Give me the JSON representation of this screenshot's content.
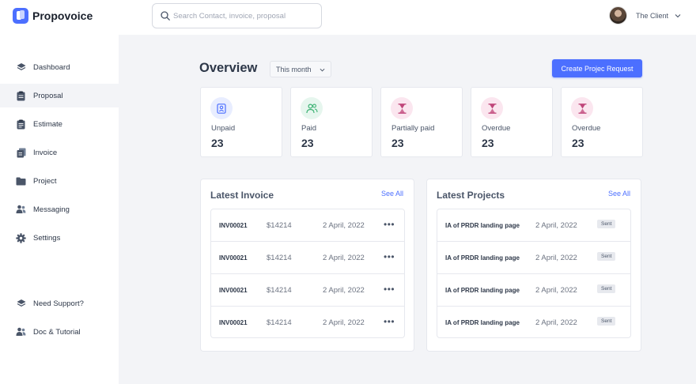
{
  "app": {
    "name": "Propovoice"
  },
  "search": {
    "placeholder": "Search Contact, invoice, proposal"
  },
  "user": {
    "name": "The Client"
  },
  "sidebar": {
    "items": [
      {
        "label": "Dashboard",
        "icon": "layers-icon"
      },
      {
        "label": "Proposal",
        "icon": "clipboard-icon",
        "active": true
      },
      {
        "label": "Estimate",
        "icon": "clipboard-list-icon"
      },
      {
        "label": "Invoice",
        "icon": "invoice-icon"
      },
      {
        "label": "Project",
        "icon": "folder-icon"
      },
      {
        "label": "Messaging",
        "icon": "users-icon"
      },
      {
        "label": "Settings",
        "icon": "gear-icon"
      }
    ],
    "bottom": [
      {
        "label": "Need Support?",
        "icon": "layers-icon"
      },
      {
        "label": "Doc & Tutorial",
        "icon": "users-icon"
      }
    ]
  },
  "overview": {
    "title": "Overview",
    "period": "This month",
    "create_label": "Create Projec Request"
  },
  "stats": [
    {
      "label": "Unpaid",
      "value": "23",
      "icon": "contact-card-icon",
      "color": "#4c6fff",
      "bg": "#e8edff"
    },
    {
      "label": "Paid",
      "value": "23",
      "icon": "users-icon",
      "color": "#3bb273",
      "bg": "#e6f6ee"
    },
    {
      "label": "Partially paid",
      "value": "23",
      "icon": "hourglass-icon",
      "color": "#c0467a",
      "bg": "#fbe6ef"
    },
    {
      "label": "Overdue",
      "value": "23",
      "icon": "hourglass-icon",
      "color": "#c0467a",
      "bg": "#fbe6ef"
    },
    {
      "label": "Overdue",
      "value": "23",
      "icon": "hourglass-icon",
      "color": "#c0467a",
      "bg": "#fbe6ef"
    }
  ],
  "latest_invoice": {
    "title": "Latest Invoice",
    "see_all": "See All",
    "rows": [
      {
        "id": "INV00021",
        "amount": "$14214",
        "date": "2 April, 2022"
      },
      {
        "id": "INV00021",
        "amount": "$14214",
        "date": "2 April, 2022"
      },
      {
        "id": "INV00021",
        "amount": "$14214",
        "date": "2 April, 2022"
      },
      {
        "id": "INV00021",
        "amount": "$14214",
        "date": "2 April, 2022"
      }
    ]
  },
  "latest_projects": {
    "title": "Latest Projects",
    "see_all": "See All",
    "rows": [
      {
        "name": "IA of PRDR landing page",
        "date": "2 April, 2022",
        "status": "Sent"
      },
      {
        "name": "IA of PRDR landing page",
        "date": "2 April, 2022",
        "status": "Sent"
      },
      {
        "name": "IA of PRDR landing page",
        "date": "2 April, 2022",
        "status": "Sent"
      },
      {
        "name": "IA of PRDR landing page",
        "date": "2 April, 2022",
        "status": "Sent"
      }
    ]
  }
}
